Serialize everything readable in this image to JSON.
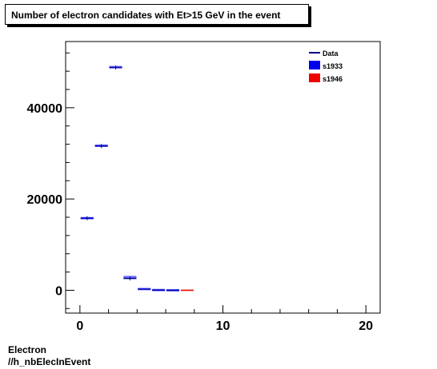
{
  "title": "Number of electron candidates with Et>15 GeV in the event",
  "footer": {
    "line1": "Electron",
    "line2": "//h_nbElecInEvent"
  },
  "chart_data": {
    "type": "scatter",
    "xlim": [
      -1,
      21
    ],
    "ylim": [
      -5000,
      54500
    ],
    "xticks": [
      0,
      10,
      20
    ],
    "yticks": [
      0,
      20000,
      40000
    ],
    "grid": false,
    "legend_position": "top-right",
    "legend": [
      {
        "label": "Data",
        "color": "#000080",
        "style": "line"
      },
      {
        "label": "s1933",
        "color": "#0000ee",
        "style": "box"
      },
      {
        "label": "s1946",
        "color": "#ee0000",
        "style": "box"
      }
    ],
    "series": [
      {
        "name": "Data",
        "color": "#000080",
        "points": [
          {
            "x0": 0,
            "x1": 1,
            "y": 15800
          },
          {
            "x0": 1,
            "x1": 2,
            "y": 31600
          },
          {
            "x0": 2,
            "x1": 3,
            "y": 48800
          },
          {
            "x0": 3,
            "x1": 4,
            "y": 2600
          },
          {
            "x0": 4,
            "x1": 5,
            "y": 250
          },
          {
            "x0": 5,
            "x1": 6,
            "y": 40
          },
          {
            "x0": 6,
            "x1": 7,
            "y": 5
          }
        ]
      },
      {
        "name": "s1933",
        "color": "#0000ee",
        "points": [
          {
            "x0": 0,
            "x1": 1,
            "y": 15800
          },
          {
            "x0": 1,
            "x1": 2,
            "y": 31700
          },
          {
            "x0": 2,
            "x1": 3,
            "y": 48900
          },
          {
            "x0": 3,
            "x1": 4,
            "y": 2900
          },
          {
            "x0": 4,
            "x1": 5,
            "y": 270
          },
          {
            "x0": 5,
            "x1": 6,
            "y": 45
          },
          {
            "x0": 6,
            "x1": 7,
            "y": 5
          }
        ]
      },
      {
        "name": "s1946",
        "color": "#ee0000",
        "points": [
          {
            "x0": 7,
            "x1": 8,
            "y": 2
          }
        ]
      }
    ]
  }
}
